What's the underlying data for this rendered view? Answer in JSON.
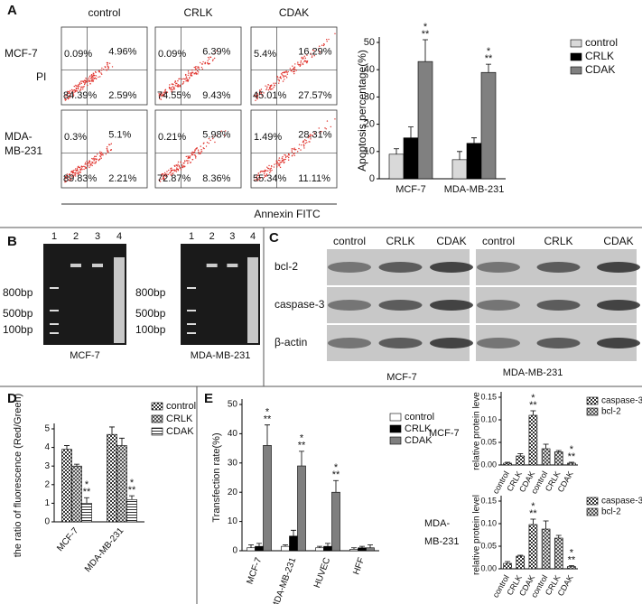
{
  "panels": {
    "letters": [
      "A",
      "B",
      "C",
      "D",
      "E"
    ]
  },
  "flow": {
    "columns": [
      "control",
      "CRLK",
      "CDAK"
    ],
    "rows": [
      [
        "MCF-7"
      ],
      [
        "MDA-",
        "MB-231"
      ]
    ],
    "y_label": "PI",
    "x_label": "Annexin FITC",
    "quadrants": [
      [
        [
          "0.09%",
          "4.96%",
          "84.39%",
          "2.59%"
        ],
        [
          "0.09%",
          "6.39%",
          "74.55%",
          "9.43%"
        ],
        [
          "5.4%",
          "16.29%",
          "45.01%",
          "27.57%"
        ]
      ],
      [
        [
          "0.3%",
          "5.1%",
          "89.83%",
          "2.21%"
        ],
        [
          "0.21%",
          "5.98%",
          "72.87%",
          "8.36%"
        ],
        [
          "1.49%",
          "28.31%",
          "55.34%",
          "11.11%"
        ]
      ]
    ]
  },
  "gel": {
    "lanes": [
      "1",
      "2",
      "3",
      "4"
    ],
    "markers": [
      "800bp",
      "500bp",
      "100bp"
    ],
    "captions": [
      "MCF-7",
      "MDA-MB-231"
    ]
  },
  "western": {
    "columns": [
      "control",
      "CRLK",
      "CDAK"
    ],
    "rows": [
      "bcl-2",
      "caspase-3",
      "β-actin"
    ],
    "captions": [
      "MCF-7",
      "MDA-MB-231"
    ]
  },
  "chart_data": [
    {
      "type": "bar",
      "y_label": "Apoptosis percentage(%)",
      "categories": [
        "MCF-7",
        "MDA-MB-231"
      ],
      "ylim": [
        0,
        50
      ],
      "yticks": [
        0,
        10,
        20,
        30,
        40,
        50
      ],
      "series": [
        {
          "name": "control",
          "color": "#d9d9d9",
          "values": [
            9,
            7
          ],
          "errors": [
            2,
            3
          ]
        },
        {
          "name": "CRLK",
          "color": "#000000",
          "values": [
            15,
            13
          ],
          "errors": [
            4,
            2
          ]
        },
        {
          "name": "CDAK",
          "color": "#808080",
          "values": [
            43,
            39
          ],
          "errors": [
            8,
            3
          ],
          "stars": [
            [
              "*",
              "**"
            ],
            [
              "*",
              "**"
            ]
          ]
        }
      ]
    },
    {
      "type": "bar",
      "y_label": "the ratio of fluorescence (Red/Green)",
      "categories": [
        "MCF-7",
        "MDA-MB-231"
      ],
      "ylim": [
        0,
        5
      ],
      "yticks": [
        0,
        1,
        2,
        3,
        4,
        5
      ],
      "series": [
        {
          "name": "control",
          "color": "#555555",
          "pattern": "checker",
          "values": [
            3.9,
            4.7
          ],
          "errors": [
            0.2,
            0.4
          ]
        },
        {
          "name": "CRLK",
          "color": "#555555",
          "pattern": "cross",
          "values": [
            3.0,
            4.1
          ],
          "errors": [
            0.1,
            0.4
          ]
        },
        {
          "name": "CDAK",
          "color": "#555555",
          "pattern": "hstripe",
          "values": [
            1.0,
            1.2
          ],
          "errors": [
            0.3,
            0.2
          ],
          "stars": [
            [
              "*",
              "**"
            ],
            [
              "*",
              "**"
            ]
          ]
        }
      ]
    },
    {
      "type": "bar",
      "y_label": "Transfection rate(%)",
      "categories": [
        "MCF-7",
        "MDA-MB-231",
        "HUVEC",
        "HFF"
      ],
      "ylim": [
        0,
        50
      ],
      "yticks": [
        0,
        10,
        20,
        30,
        40,
        50
      ],
      "series": [
        {
          "name": "control",
          "color": "#ffffff",
          "values": [
            1,
            1.5,
            1,
            0.5
          ],
          "errors": [
            1,
            0.5,
            0.5,
            0.5
          ]
        },
        {
          "name": "CRLK",
          "color": "#000000",
          "values": [
            1.5,
            5,
            1.5,
            1
          ],
          "errors": [
            1,
            2,
            1,
            0.5
          ]
        },
        {
          "name": "CDAK",
          "color": "#7f7f7f",
          "values": [
            36,
            29,
            20,
            1
          ],
          "errors": [
            7,
            5,
            4,
            1
          ],
          "stars": [
            [
              "*",
              "**"
            ],
            [
              "*",
              "**"
            ],
            [
              "*",
              "**"
            ],
            null
          ]
        }
      ]
    },
    {
      "type": "bar",
      "side_label": [
        "MCF-7"
      ],
      "y_label": "relative protein leve",
      "categories": [
        "control",
        "CRLK",
        "CDAK",
        "control",
        "CRLK",
        "CDAK"
      ],
      "ylim": [
        0,
        0.15
      ],
      "yticks": [
        {
          "value": 0,
          "label": "0.00"
        },
        0.05,
        {
          "value": 0.1,
          "label": "0.10"
        },
        0.15
      ],
      "series": [
        {
          "name": "caspase-3",
          "color": "#444444",
          "pattern": "checker",
          "values": [
            0.004,
            0.02,
            0.11,
            null,
            null,
            null
          ],
          "errors": [
            0.002,
            0.005,
            0.01,
            null,
            null,
            null
          ],
          "stars": [
            null,
            null,
            [
              "*",
              "**"
            ],
            null,
            null,
            null
          ]
        },
        {
          "name": "bcl-2",
          "color": "#444444",
          "pattern": "cross",
          "values": [
            null,
            null,
            null,
            0.036,
            0.029,
            0.004
          ],
          "errors": [
            null,
            null,
            null,
            0.01,
            0.003,
            0.002
          ],
          "stars": [
            null,
            null,
            null,
            null,
            null,
            [
              "*",
              "**"
            ]
          ]
        }
      ]
    },
    {
      "type": "bar",
      "side_label": [
        "MDA-",
        "MB-231"
      ],
      "y_label": "relative protein level",
      "categories": [
        "control",
        "CRLK",
        "CDAK",
        "control",
        "CRLK",
        "CDAK"
      ],
      "ylim": [
        0,
        0.15
      ],
      "yticks": [
        {
          "value": 0,
          "label": "0.00"
        },
        0.05,
        {
          "value": 0.1,
          "label": "0.10"
        },
        0.15
      ],
      "series": [
        {
          "name": "caspase-3",
          "color": "#444444",
          "pattern": "checker",
          "values": [
            0.012,
            0.028,
            0.098,
            null,
            null,
            null
          ],
          "errors": [
            0.004,
            0.002,
            0.012,
            null,
            null,
            null
          ],
          "stars": [
            null,
            null,
            [
              "*",
              "**"
            ],
            null,
            null,
            null
          ]
        },
        {
          "name": "bcl-2",
          "color": "#444444",
          "pattern": "cross",
          "values": [
            null,
            null,
            null,
            0.088,
            0.068,
            0.005
          ],
          "errors": [
            null,
            null,
            null,
            0.018,
            0.006,
            0.002
          ],
          "stars": [
            null,
            null,
            null,
            null,
            null,
            [
              "*",
              "**"
            ]
          ]
        }
      ]
    }
  ]
}
